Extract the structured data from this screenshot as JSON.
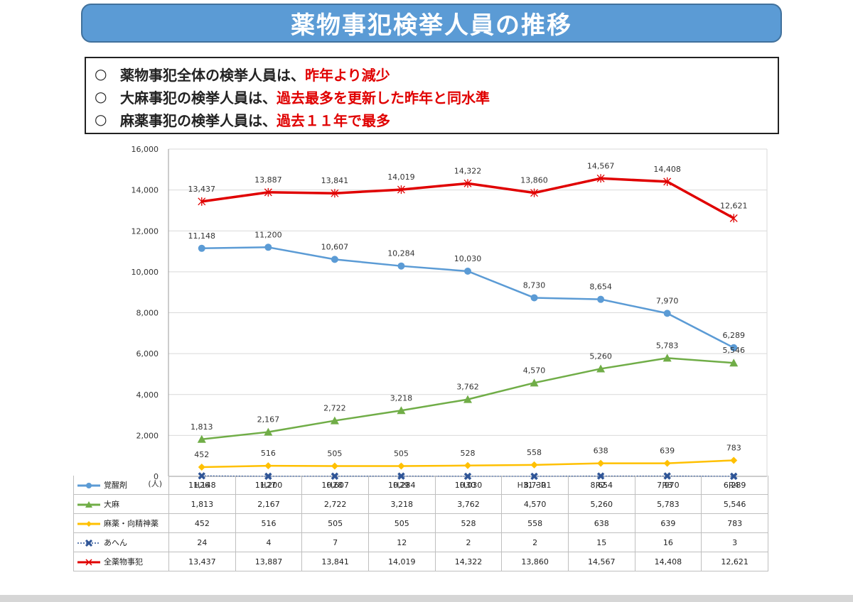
{
  "header": {
    "title": "薬物事犯検挙人員の推移"
  },
  "summary": [
    {
      "mark": "○",
      "text": "薬物事犯全体の検挙人員は、",
      "highlight": "昨年より減少"
    },
    {
      "mark": "○",
      "text": "大麻事犯の検挙人員は、",
      "highlight": "過去最多を更新した昨年と同水準"
    },
    {
      "mark": "○",
      "text": "麻薬事犯の検挙人員は、",
      "highlight": "過去１１年で最多"
    }
  ],
  "chart_data": {
    "type": "line",
    "categories": [
      "H26",
      "H27",
      "H28",
      "H29",
      "H30",
      "H31・R1",
      "R2",
      "R3",
      "R4"
    ],
    "yunit": "(人)",
    "ylim": [
      0,
      16000
    ],
    "yticks": [
      0,
      2000,
      4000,
      6000,
      8000,
      10000,
      12000,
      14000,
      16000
    ],
    "ytick_labels": [
      "0",
      "2,000",
      "4,000",
      "6,000",
      "8,000",
      "10,000",
      "12,000",
      "14,000",
      "16,000"
    ],
    "grid": true,
    "series": [
      {
        "name": "覚醒剤",
        "color": "#5b9bd5",
        "marker": "circle",
        "line": "solid",
        "values": [
          11148,
          11200,
          10607,
          10284,
          10030,
          8730,
          8654,
          7970,
          6289
        ],
        "labels": [
          "11,148",
          "11,200",
          "10,607",
          "10,284",
          "10,030",
          "8,730",
          "8,654",
          "7,970",
          "6,289"
        ]
      },
      {
        "name": "大麻",
        "color": "#70ad47",
        "marker": "triangle",
        "line": "solid",
        "values": [
          1813,
          2167,
          2722,
          3218,
          3762,
          4570,
          5260,
          5783,
          5546
        ],
        "labels": [
          "1,813",
          "2,167",
          "2,722",
          "3,218",
          "3,762",
          "4,570",
          "5,260",
          "5,783",
          "5,546"
        ]
      },
      {
        "name": "麻薬・向精神薬",
        "color": "#ffc000",
        "marker": "diamond",
        "line": "solid",
        "values": [
          452,
          516,
          505,
          505,
          528,
          558,
          638,
          639,
          783
        ],
        "labels": [
          "452",
          "516",
          "505",
          "505",
          "528",
          "558",
          "638",
          "639",
          "783"
        ]
      },
      {
        "name": "あへん",
        "color": "#2f5597",
        "marker": "cross",
        "line": "dotted",
        "values": [
          24,
          4,
          7,
          12,
          2,
          2,
          15,
          16,
          3
        ],
        "labels": [
          "24",
          "4",
          "7",
          "12",
          "2",
          "2",
          "15",
          "16",
          "3"
        ]
      },
      {
        "name": "全薬物事犯",
        "color": "#e00000",
        "marker": "star",
        "line": "solid",
        "values": [
          13437,
          13887,
          13841,
          14019,
          14322,
          13860,
          14567,
          14408,
          12621
        ],
        "labels": [
          "13,437",
          "13,887",
          "13,841",
          "14,019",
          "14,322",
          "13,860",
          "14,567",
          "14,408",
          "12,621"
        ]
      }
    ]
  }
}
